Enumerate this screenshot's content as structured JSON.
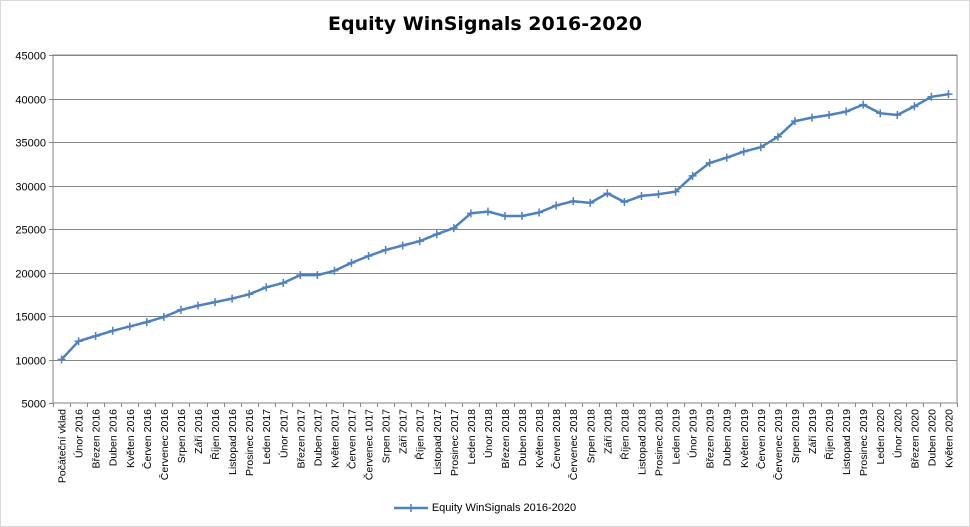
{
  "chart_data": {
    "type": "line",
    "title": "Equity WinSignals 2016-2020",
    "xlabel": "",
    "ylabel": "",
    "ylim": [
      5000,
      45000
    ],
    "yticks": [
      "5000",
      "10000",
      "15000",
      "20000",
      "25000",
      "30000",
      "35000",
      "40000",
      "45000"
    ],
    "grid": true,
    "legend_position": "bottom",
    "line_color": "#4f81bd",
    "categories": [
      "Počáteční vklad",
      "Únor 2016",
      "Březen 2016",
      "Duben 2016",
      "Květen 2016",
      "Červen 2016",
      "Červenec 2016",
      "Srpen 2016",
      "Září 2016",
      "Říjen 2016",
      "Listopad 2016",
      "Prosinec 2016",
      "Leden 2017",
      "Únor 2017",
      "Březen 2017",
      "Duben 2017",
      "Květen 2017",
      "Červen 2017",
      "Červenec 1017",
      "Srpen 2017",
      "Září 2017",
      "Říjen 2017",
      "Listopad 2017",
      "Prosinec 2017",
      "Leden 2018",
      "Únor 2018",
      "Březen 2018",
      "Duben 2018",
      "Květen 2018",
      "Červen 2018",
      "Červenec 2018",
      "Srpen 2018",
      "Září 2018",
      "Říjen 2018",
      "Listopad 2018",
      "Prosinec 2018",
      "Leden 2019",
      "Únor 2019",
      "Březen 2019",
      "Duben 2019",
      "Květen 2019",
      "Červen 2019",
      "Červenec 2019",
      "Srpen 2019",
      "Září 2019",
      "Říjen 2019",
      "Listopad 2019",
      "Prosinec 2019",
      "Leden 2020",
      "Únor 2020",
      "Březen 2020",
      "Duben 2020",
      "Květen 2020"
    ],
    "series": [
      {
        "name": "Equity WinSignals 2016-2020",
        "values": [
          10000,
          12100,
          12700,
          13300,
          13800,
          14300,
          14900,
          15700,
          16200,
          16600,
          17000,
          17500,
          18300,
          18800,
          19700,
          19700,
          20200,
          21100,
          21900,
          22600,
          23100,
          23600,
          24400,
          25100,
          26800,
          27000,
          26500,
          26500,
          26900,
          27700,
          28200,
          28000,
          29100,
          28100,
          28800,
          29000,
          29300,
          31100,
          32600,
          33200,
          33900,
          34400,
          35600,
          37400,
          37800,
          38100,
          38500,
          39300,
          38300,
          38100,
          39100,
          40200,
          40500
        ]
      }
    ]
  }
}
